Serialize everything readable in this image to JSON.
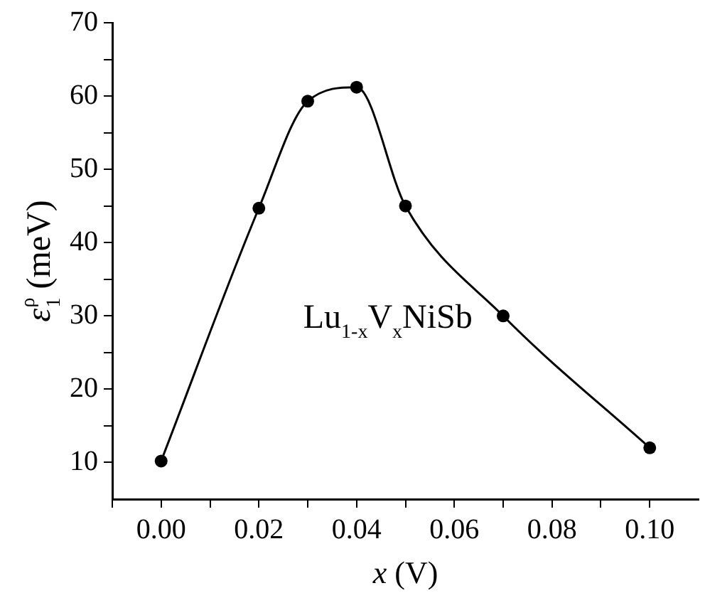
{
  "chart_data": {
    "type": "line",
    "xlabel": "x (V)",
    "ylabel": "ε$_{1}$$^{ρ}$ (meV)",
    "x": [
      0,
      0.02,
      0.03,
      0.04,
      0.05,
      0.07,
      0.1
    ],
    "series": [
      {
        "color": "#000000",
        "values": [
          10.2,
          44.7,
          59.3,
          61.2,
          45,
          30,
          12
        ]
      }
    ],
    "xlim": [
      -0.01,
      0.11
    ],
    "xticks": [
      {
        "value": -0.01,
        "label": null
      },
      {
        "value": 0,
        "label": "0.00"
      },
      {
        "value": 0.01,
        "label": null
      },
      {
        "value": 0.02,
        "label": "0.02"
      },
      {
        "value": 0.03,
        "label": null
      },
      {
        "value": 0.04,
        "label": "0.04"
      },
      {
        "value": 0.05,
        "label": null
      },
      {
        "value": 0.06,
        "label": "0.06"
      },
      {
        "value": 0.07,
        "label": null
      },
      {
        "value": 0.08,
        "label": "0.08"
      },
      {
        "value": 0.09,
        "label": null
      },
      {
        "value": 0.1,
        "label": "0.10"
      }
    ],
    "ylim": [
      5,
      70
    ],
    "yticks": [
      10,
      {
        "value": 15,
        "label": null
      },
      20,
      {
        "value": 25,
        "label": null
      },
      30,
      {
        "value": 35,
        "label": null
      },
      40,
      {
        "value": 45,
        "label": null
      },
      50,
      {
        "value": 55,
        "label": null
      },
      60,
      {
        "value": 65,
        "label": null
      },
      70
    ],
    "annotations": [
      "Lu$_{1-x}$V$_{x}$NiSb"
    ],
    "marker": "circle",
    "line_style": "solid",
    "grid": false,
    "legend": false
  }
}
